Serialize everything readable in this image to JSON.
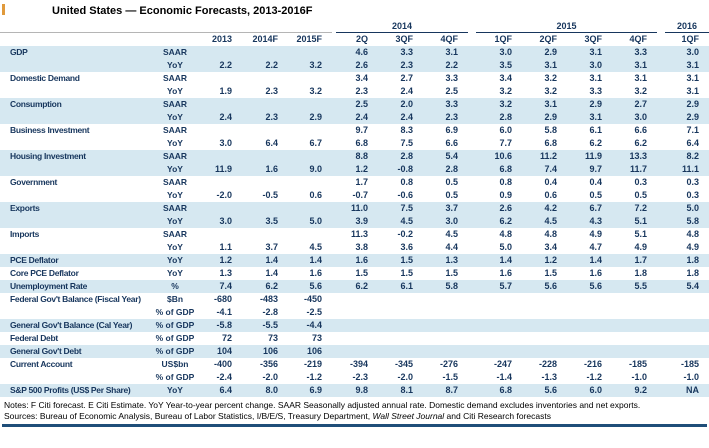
{
  "title": "United States — Economic Forecasts, 2013-2016F",
  "colors": {
    "row_shade": "#d6e8f1",
    "text_navy": "#17365d",
    "rule_navy": "#1f4e79",
    "accent_orange": "#e09a3c"
  },
  "table": {
    "annual_headers": [
      "2013",
      "2014F",
      "2015F"
    ],
    "groups": [
      {
        "label": "2014",
        "cols": 3
      },
      {
        "label": "2015",
        "cols": 4
      },
      {
        "label": "2016",
        "cols": 1
      }
    ],
    "quarter_headers": [
      "2Q",
      "3QF",
      "4QF",
      "1QF",
      "2QF",
      "3QF",
      "4QF",
      "1QF"
    ],
    "rows": [
      {
        "label": "GDP",
        "unit": "SAAR",
        "annual": [
          "",
          "",
          ""
        ],
        "quarters": [
          "4.6",
          "3.3",
          "3.1",
          "3.0",
          "2.9",
          "3.1",
          "3.3",
          "3.0"
        ],
        "shaded": true
      },
      {
        "label": "",
        "unit": "YoY",
        "annual": [
          "2.2",
          "2.2",
          "3.2"
        ],
        "quarters": [
          "2.6",
          "2.3",
          "2.2",
          "3.5",
          "3.1",
          "3.0",
          "3.1",
          "3.1"
        ],
        "shaded": true
      },
      {
        "label": "Domestic Demand",
        "unit": "SAAR",
        "annual": [
          "",
          "",
          ""
        ],
        "quarters": [
          "3.4",
          "2.7",
          "3.3",
          "3.4",
          "3.2",
          "3.1",
          "3.1",
          "3.1"
        ],
        "shaded": false
      },
      {
        "label": "",
        "unit": "YoY",
        "annual": [
          "1.9",
          "2.3",
          "3.2"
        ],
        "quarters": [
          "2.3",
          "2.4",
          "2.5",
          "3.2",
          "3.2",
          "3.3",
          "3.2",
          "3.1"
        ],
        "shaded": false
      },
      {
        "label": "Consumption",
        "unit": "SAAR",
        "annual": [
          "",
          "",
          ""
        ],
        "quarters": [
          "2.5",
          "2.0",
          "3.3",
          "3.2",
          "3.1",
          "2.9",
          "2.7",
          "2.9"
        ],
        "shaded": true
      },
      {
        "label": "",
        "unit": "YoY",
        "annual": [
          "2.4",
          "2.3",
          "2.9"
        ],
        "quarters": [
          "2.4",
          "2.4",
          "2.3",
          "2.8",
          "2.9",
          "3.1",
          "3.0",
          "2.9"
        ],
        "shaded": true
      },
      {
        "label": "Business Investment",
        "unit": "SAAR",
        "annual": [
          "",
          "",
          ""
        ],
        "quarters": [
          "9.7",
          "8.3",
          "6.9",
          "6.0",
          "5.8",
          "6.1",
          "6.6",
          "7.1"
        ],
        "shaded": false
      },
      {
        "label": "",
        "unit": "YoY",
        "annual": [
          "3.0",
          "6.4",
          "6.7"
        ],
        "quarters": [
          "6.8",
          "7.5",
          "6.6",
          "7.7",
          "6.8",
          "6.2",
          "6.2",
          "6.4"
        ],
        "shaded": false
      },
      {
        "label": "Housing Investment",
        "unit": "SAAR",
        "annual": [
          "",
          "",
          ""
        ],
        "quarters": [
          "8.8",
          "2.8",
          "5.4",
          "10.6",
          "11.2",
          "11.9",
          "13.3",
          "8.2"
        ],
        "shaded": true
      },
      {
        "label": "",
        "unit": "YoY",
        "annual": [
          "11.9",
          "1.6",
          "9.0"
        ],
        "quarters": [
          "1.2",
          "-0.8",
          "2.8",
          "6.8",
          "7.4",
          "9.7",
          "11.7",
          "11.1"
        ],
        "shaded": true
      },
      {
        "label": "Government",
        "unit": "SAAR",
        "annual": [
          "",
          "",
          ""
        ],
        "quarters": [
          "1.7",
          "0.8",
          "0.5",
          "0.8",
          "0.4",
          "0.4",
          "0.3",
          "0.3"
        ],
        "shaded": false
      },
      {
        "label": "",
        "unit": "YoY",
        "annual": [
          "-2.0",
          "-0.5",
          "0.6"
        ],
        "quarters": [
          "-0.7",
          "-0.6",
          "0.5",
          "0.9",
          "0.6",
          "0.5",
          "0.5",
          "0.3"
        ],
        "shaded": false
      },
      {
        "label": "Exports",
        "unit": "SAAR",
        "annual": [
          "",
          "",
          ""
        ],
        "quarters": [
          "11.0",
          "7.5",
          "3.7",
          "2.6",
          "4.2",
          "6.7",
          "7.2",
          "5.0"
        ],
        "shaded": true
      },
      {
        "label": "",
        "unit": "YoY",
        "annual": [
          "3.0",
          "3.5",
          "5.0"
        ],
        "quarters": [
          "3.9",
          "4.5",
          "3.0",
          "6.2",
          "4.5",
          "4.3",
          "5.1",
          "5.8"
        ],
        "shaded": true
      },
      {
        "label": "Imports",
        "unit": "SAAR",
        "annual": [
          "",
          "",
          ""
        ],
        "quarters": [
          "11.3",
          "-0.2",
          "4.5",
          "4.8",
          "4.8",
          "4.9",
          "5.1",
          "4.8"
        ],
        "shaded": false
      },
      {
        "label": "",
        "unit": "YoY",
        "annual": [
          "1.1",
          "3.7",
          "4.5"
        ],
        "quarters": [
          "3.8",
          "3.6",
          "4.4",
          "5.0",
          "3.4",
          "4.7",
          "4.9",
          "4.9"
        ],
        "shaded": false
      },
      {
        "label": "PCE Deflator",
        "unit": "YoY",
        "annual": [
          "1.2",
          "1.4",
          "1.4"
        ],
        "quarters": [
          "1.6",
          "1.5",
          "1.3",
          "1.4",
          "1.2",
          "1.4",
          "1.7",
          "1.8"
        ],
        "shaded": true
      },
      {
        "label": "Core PCE Deflator",
        "unit": "YoY",
        "annual": [
          "1.3",
          "1.4",
          "1.6"
        ],
        "quarters": [
          "1.5",
          "1.5",
          "1.5",
          "1.6",
          "1.5",
          "1.6",
          "1.8",
          "1.8"
        ],
        "shaded": false
      },
      {
        "label": "Unemployment Rate",
        "unit": "%",
        "annual": [
          "7.4",
          "6.2",
          "5.6"
        ],
        "quarters": [
          "6.2",
          "6.1",
          "5.8",
          "5.7",
          "5.6",
          "5.6",
          "5.5",
          "5.4"
        ],
        "shaded": true
      },
      {
        "label": "Federal Gov't Balance (Fiscal Year)",
        "unit": "$Bn",
        "annual": [
          "-680",
          "-483",
          "-450"
        ],
        "quarters": [
          "",
          "",
          "",
          "",
          "",
          "",
          "",
          ""
        ],
        "shaded": false
      },
      {
        "label": "",
        "unit": "% of GDP",
        "annual": [
          "-4.1",
          "-2.8",
          "-2.5"
        ],
        "quarters": [
          "",
          "",
          "",
          "",
          "",
          "",
          "",
          ""
        ],
        "shaded": false
      },
      {
        "label": "General Gov't Balance (Cal Year)",
        "unit": "% of GDP",
        "annual": [
          "-5.8",
          "-5.5",
          "-4.4"
        ],
        "quarters": [
          "",
          "",
          "",
          "",
          "",
          "",
          "",
          ""
        ],
        "shaded": true
      },
      {
        "label": "Federal Debt",
        "unit": "% of GDP",
        "annual": [
          "72",
          "73",
          "73"
        ],
        "quarters": [
          "",
          "",
          "",
          "",
          "",
          "",
          "",
          ""
        ],
        "shaded": false
      },
      {
        "label": "General Gov't Debt",
        "unit": "% of GDP",
        "annual": [
          "104",
          "106",
          "106"
        ],
        "quarters": [
          "",
          "",
          "",
          "",
          "",
          "",
          "",
          ""
        ],
        "shaded": true
      },
      {
        "label": "Current Account",
        "unit": "US$bn",
        "annual": [
          "-400",
          "-356",
          "-219"
        ],
        "quarters": [
          "-394",
          "-345",
          "-276",
          "-247",
          "-228",
          "-216",
          "-185",
          "-185"
        ],
        "shaded": false
      },
      {
        "label": "",
        "unit": "% of GDP",
        "annual": [
          "-2.4",
          "-2.0",
          "-1.2"
        ],
        "quarters": [
          "-2.3",
          "-2.0",
          "-1.5",
          "-1.4",
          "-1.3",
          "-1.2",
          "-1.0",
          "-1.0"
        ],
        "shaded": false
      },
      {
        "label": "S&P 500 Profits (US$ Per Share)",
        "unit": "YoY",
        "annual": [
          "6.4",
          "8.0",
          "6.9"
        ],
        "quarters": [
          "9.8",
          "8.1",
          "8.7",
          "6.8",
          "5.6",
          "6.0",
          "9.2",
          "NA"
        ],
        "shaded": true
      }
    ]
  },
  "notes": "Notes: F Citi forecast. E Citi Estimate. YoY Year-to-year percent change. SAAR Seasonally adjusted annual rate. Domestic demand excludes inventories and net exports.",
  "sources": {
    "prefix": "Sources: Bureau of Economic Analysis, Bureau of Labor Statistics, I/B/E/S, Treasury Department, ",
    "italic": "Wall Street Journal",
    "suffix": " and Citi Research forecasts"
  }
}
